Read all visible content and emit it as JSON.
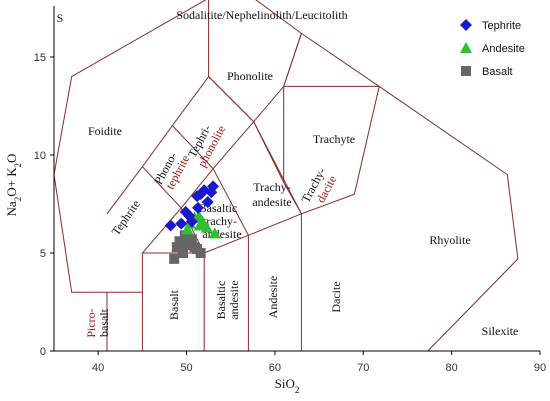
{
  "chart_data": {
    "type": "scatter",
    "title": "",
    "xlabel": "SiO2",
    "ylabel": "Na2O+ K2O",
    "xlim": [
      35,
      90
    ],
    "ylim": [
      0,
      17.6
    ],
    "x_ticks": [
      40,
      50,
      60,
      70,
      80,
      90
    ],
    "y_ticks": [
      0,
      5,
      10,
      15
    ],
    "x_tick_labels": [
      "40",
      "50",
      "60",
      "70",
      "80",
      "90"
    ],
    "y_tick_labels": [
      "0",
      "5",
      "10",
      "15"
    ],
    "legend": {
      "placement": "top-right",
      "entries": [
        {
          "label": "Tephrite",
          "marker": "diamond",
          "color": "#1a1acc"
        },
        {
          "label": "Andesite",
          "marker": "triangle",
          "color": "#2fbf2f"
        },
        {
          "label": "Basalt",
          "marker": "square",
          "color": "#666666"
        }
      ]
    },
    "series": [
      {
        "name": "Tephrite",
        "marker": "diamond",
        "color": "#1a1acc",
        "points": [
          [
            48.2,
            6.4
          ],
          [
            49.9,
            7.1
          ],
          [
            50.3,
            6.9
          ],
          [
            51.2,
            7.9
          ],
          [
            51.6,
            8.0
          ],
          [
            52.0,
            8.2
          ],
          [
            52.4,
            7.6
          ],
          [
            52.8,
            8.1
          ],
          [
            53.0,
            8.4
          ],
          [
            50.6,
            6.6
          ],
          [
            51.3,
            7.3
          ],
          [
            49.4,
            6.5
          ]
        ]
      },
      {
        "name": "Andesite",
        "marker": "triangle",
        "color": "#2fbf2f",
        "points": [
          [
            50.4,
            6.5
          ],
          [
            50.9,
            6.8
          ],
          [
            51.4,
            6.9
          ],
          [
            51.8,
            6.6
          ],
          [
            52.3,
            6.3
          ],
          [
            53.2,
            6.0
          ],
          [
            50.1,
            6.2
          ],
          [
            51.5,
            6.4
          ]
        ]
      },
      {
        "name": "Basalt",
        "marker": "square",
        "color": "#666666",
        "points": [
          [
            48.6,
            4.7
          ],
          [
            48.9,
            5.3
          ],
          [
            49.2,
            5.6
          ],
          [
            49.6,
            5.0
          ],
          [
            50.1,
            5.4
          ],
          [
            50.6,
            5.7
          ],
          [
            51.2,
            5.2
          ],
          [
            51.6,
            5.0
          ],
          [
            49.8,
            5.9
          ],
          [
            50.9,
            5.3
          ],
          [
            49.4,
            5.4
          ]
        ]
      }
    ],
    "field_labels": {
      "top": "Sodalitite/Nephelinolith/Leucitolith",
      "foidite": "Foidite",
      "phonolite": "Phonolite",
      "tephriphonolite_1": "Tephri-",
      "tephriphonolite_2": "phonolite",
      "phonotephrite_1": "Phono-",
      "phonotephrite_2": "tephrite",
      "trachyte": "Trachyte",
      "trachydacite_1": "Trachy-",
      "trachydacite_2": "dacite",
      "trachyandesite_1": "Trachy-",
      "trachyandesite_2": "andesite",
      "tephrite": "Tephrite",
      "basaltic_ta_1": "Basaltic",
      "basaltic_ta_2": "trachy-",
      "basaltic_ta_3": "andesite",
      "trachybasalt": "Tr",
      "rhyolite": "Rhyolite",
      "picro_1": "Picro-",
      "picro_2": "basalt",
      "basalt": "Basalt",
      "basaltic_andesite_1": "Basaltic",
      "basaltic_andesite_2": "andesite",
      "andesite": "Andesite",
      "dacite": "Dacite",
      "silexite": "Silexite",
      "corner": "S"
    }
  }
}
